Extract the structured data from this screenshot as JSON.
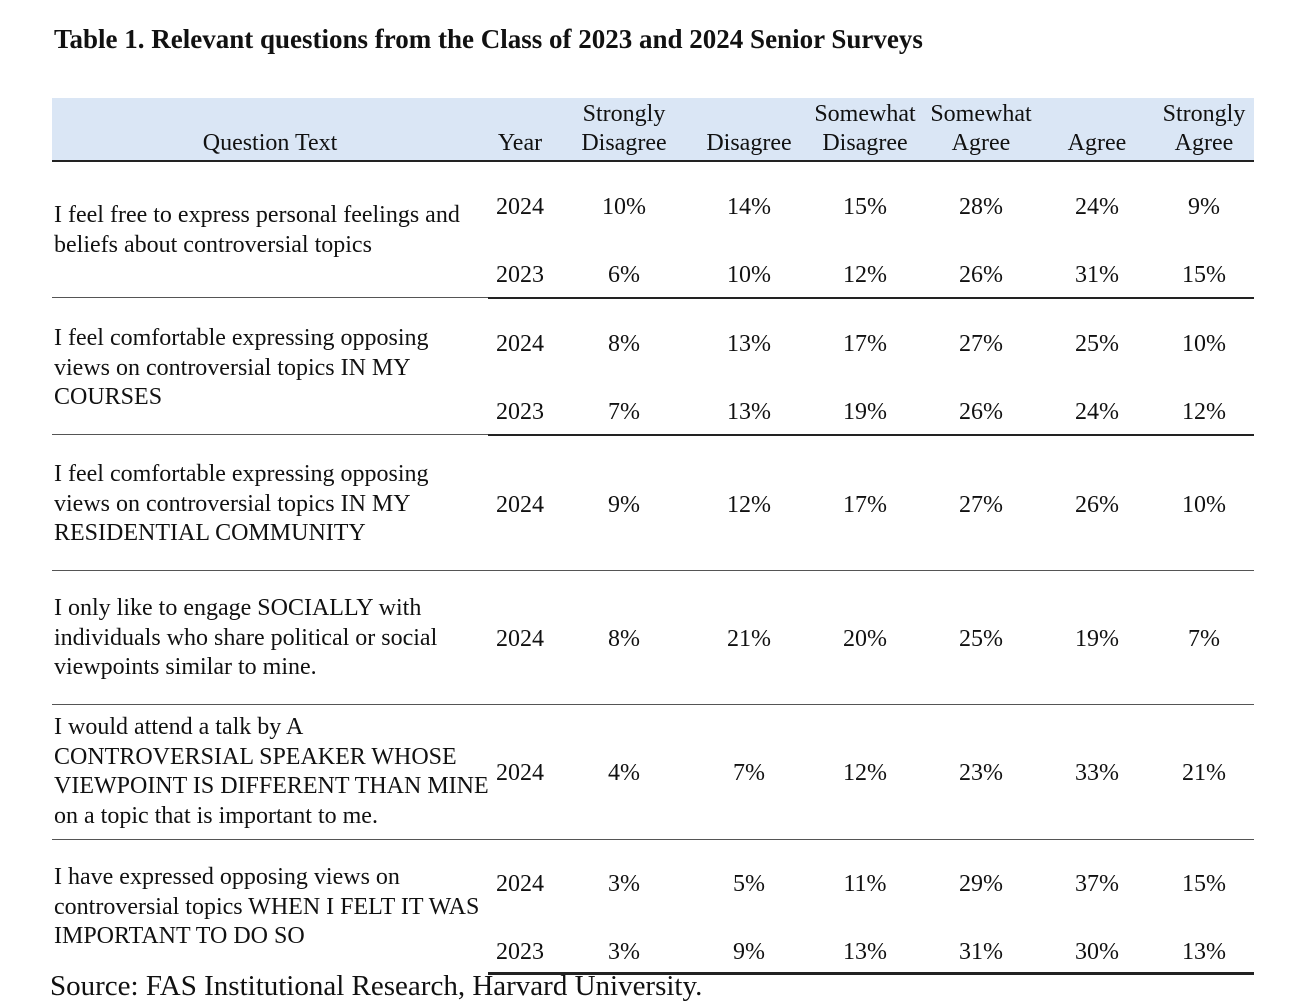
{
  "title": "Table 1. Relevant questions from the Class of 2023 and 2024 Senior Surveys",
  "headers": {
    "question": "Question Text",
    "year": "Year",
    "strongly_disagree_1": "Strongly",
    "strongly_disagree_2": "Disagree",
    "disagree": "Disagree",
    "somewhat_disagree_1": "Somewhat",
    "somewhat_disagree_2": "Disagree",
    "somewhat_agree_1": "Somewhat",
    "somewhat_agree_2": "Agree",
    "agree": "Agree",
    "strongly_agree_1": "Strongly",
    "strongly_agree_2": "Agree"
  },
  "questions": [
    {
      "text": "I feel free to express personal feelings and beliefs about controversial topics",
      "rows": [
        {
          "year": "2024",
          "sd": "10%",
          "d": "14%",
          "swd": "15%",
          "swa": "28%",
          "a": "24%",
          "sa": "9%"
        },
        {
          "year": "2023",
          "sd": "6%",
          "d": "10%",
          "swd": "12%",
          "swa": "26%",
          "a": "31%",
          "sa": "15%"
        }
      ]
    },
    {
      "text": "I feel comfortable expressing opposing views on controversial topics IN MY COURSES",
      "rows": [
        {
          "year": "2024",
          "sd": "8%",
          "d": "13%",
          "swd": "17%",
          "swa": "27%",
          "a": "25%",
          "sa": "10%"
        },
        {
          "year": "2023",
          "sd": "7%",
          "d": "13%",
          "swd": "19%",
          "swa": "26%",
          "a": "24%",
          "sa": "12%"
        }
      ]
    },
    {
      "text": "I feel comfortable expressing opposing views on controversial topics IN MY RESIDENTIAL COMMUNITY",
      "rows": [
        {
          "year": "2024",
          "sd": "9%",
          "d": "12%",
          "swd": "17%",
          "swa": "27%",
          "a": "26%",
          "sa": "10%"
        }
      ]
    },
    {
      "text": "I only like to engage SOCIALLY with individuals who share political or social viewpoints similar to mine.",
      "rows": [
        {
          "year": "2024",
          "sd": "8%",
          "d": "21%",
          "swd": "20%",
          "swa": "25%",
          "a": "19%",
          "sa": "7%"
        }
      ]
    },
    {
      "text": "I would attend a talk by A CONTROVERSIAL SPEAKER WHOSE VIEWPOINT IS DIFFERENT THAN MINE on a topic that is important to me.",
      "rows": [
        {
          "year": "2024",
          "sd": "4%",
          "d": "7%",
          "swd": "12%",
          "swa": "23%",
          "a": "33%",
          "sa": "21%"
        }
      ]
    },
    {
      "text": "I have expressed opposing views on controversial topics WHEN I FELT IT WAS IMPORTANT TO DO SO",
      "rows": [
        {
          "year": "2024",
          "sd": "3%",
          "d": "5%",
          "swd": "11%",
          "swa": "29%",
          "a": "37%",
          "sa": "15%"
        },
        {
          "year": "2023",
          "sd": "3%",
          "d": "9%",
          "swd": "13%",
          "swa": "31%",
          "a": "30%",
          "sa": "13%"
        }
      ]
    }
  ],
  "source": "Source: FAS Institutional Research, Harvard University."
}
